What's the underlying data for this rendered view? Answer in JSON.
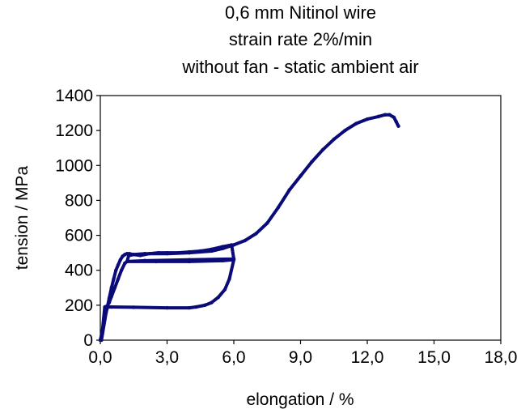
{
  "chart_data": {
    "type": "line",
    "title_lines": [
      "0,6 mm Nitinol wire",
      "strain rate 2%/min",
      "without fan - static ambient air"
    ],
    "xlabel": "elongation / %",
    "ylabel": "tension / MPa",
    "xlim": [
      0,
      18
    ],
    "ylim": [
      0,
      1400
    ],
    "x_ticks": [
      0,
      3,
      6,
      9,
      12,
      15,
      18
    ],
    "x_tick_labels": [
      "0,0",
      "3,0",
      "6,0",
      "9,0",
      "12,0",
      "15,0",
      "18,0"
    ],
    "y_ticks": [
      0,
      200,
      400,
      600,
      800,
      1000,
      1200,
      1400
    ],
    "y_tick_labels": [
      "0",
      "200",
      "400",
      "600",
      "800",
      "1000",
      "1200",
      "1400"
    ],
    "grid": false,
    "legend": "none",
    "series": [
      {
        "color": "#0a0a78",
        "x": [
          0.0,
          0.1,
          0.2,
          0.3,
          0.4,
          0.5,
          0.6,
          0.7,
          0.8,
          0.9,
          1.0,
          1.1,
          1.2,
          1.3,
          1.5,
          1.8,
          2.2,
          2.6,
          3.0,
          3.5,
          4.0,
          4.5,
          5.0,
          5.5,
          5.9,
          6.0,
          5.95,
          5.5,
          4.0,
          2.5,
          1.2,
          1.1,
          0.95,
          0.8,
          0.65,
          0.5,
          0.4,
          0.3,
          0.2,
          0.05,
          0.3,
          0.5,
          1.5,
          3.0,
          4.0,
          4.3,
          4.7,
          5.0,
          5.3,
          5.6,
          5.8,
          6.0,
          6.0,
          4.0,
          2.0,
          1.2,
          1.3,
          1.5,
          2.0,
          3.0,
          4.0,
          5.0,
          5.5,
          6.0,
          6.5,
          7.0,
          7.5,
          8.0,
          8.5,
          9.0,
          9.5,
          10.0,
          10.5,
          11.0,
          11.5,
          12.0,
          12.5,
          12.8,
          13.0,
          13.2,
          13.3,
          13.4
        ],
        "y": [
          0,
          60,
          120,
          180,
          240,
          300,
          350,
          400,
          430,
          460,
          480,
          490,
          495,
          485,
          490,
          485,
          495,
          500,
          500,
          500,
          505,
          510,
          520,
          535,
          545,
          465,
          460,
          455,
          450,
          450,
          450,
          440,
          400,
          350,
          300,
          250,
          215,
          195,
          190,
          0,
          190,
          190,
          188,
          185,
          185,
          190,
          200,
          215,
          245,
          290,
          350,
          460,
          465,
          460,
          455,
          450,
          495,
          490,
          495,
          495,
          500,
          510,
          525,
          545,
          570,
          610,
          670,
          760,
          860,
          940,
          1020,
          1090,
          1150,
          1200,
          1240,
          1265,
          1280,
          1290,
          1290,
          1275,
          1250,
          1225
        ]
      }
    ]
  }
}
